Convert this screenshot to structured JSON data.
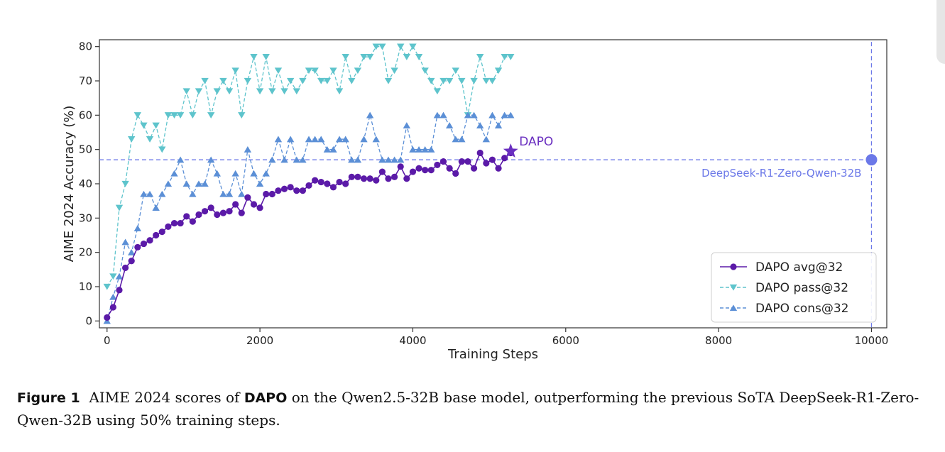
{
  "chart_data": {
    "type": "line",
    "xlabel": "Training Steps",
    "ylabel": "AIME 2024 Accuracy (%)",
    "xlim": [
      -100,
      10200
    ],
    "ylim": [
      -2,
      82
    ],
    "xticks": [
      0,
      2000,
      4000,
      6000,
      8000,
      10000
    ],
    "yticks": [
      0,
      10,
      20,
      30,
      40,
      50,
      60,
      70,
      80
    ],
    "grid": false,
    "legend_position": "lower-right",
    "series": [
      {
        "name": "DAPO avg@32",
        "color": "#5b1aa8",
        "marker": "circle",
        "linestyle": "solid",
        "x": [
          0,
          80,
          160,
          240,
          320,
          400,
          480,
          560,
          640,
          720,
          800,
          880,
          960,
          1040,
          1120,
          1200,
          1280,
          1360,
          1440,
          1520,
          1600,
          1680,
          1760,
          1840,
          1920,
          2000,
          2080,
          2160,
          2240,
          2320,
          2400,
          2480,
          2560,
          2640,
          2720,
          2800,
          2880,
          2960,
          3040,
          3120,
          3200,
          3280,
          3360,
          3440,
          3520,
          3600,
          3680,
          3760,
          3840,
          3920,
          4000,
          4080,
          4160,
          4240,
          4320,
          4400,
          4480,
          4560,
          4640,
          4720,
          4800,
          4880,
          4960,
          5040,
          5120,
          5200,
          5280
        ],
        "y": [
          1,
          4,
          9,
          15.5,
          17.5,
          21.5,
          22.5,
          23.5,
          25,
          26,
          27.5,
          28.5,
          28.5,
          30.5,
          29,
          31,
          32,
          33,
          31,
          31.5,
          32,
          34,
          31.5,
          36,
          34,
          33,
          37,
          37,
          38,
          38.5,
          39,
          38,
          38,
          39.5,
          41,
          40.5,
          40,
          39,
          40.5,
          40,
          42,
          42,
          41.5,
          41.5,
          41,
          43.5,
          41.5,
          42,
          45,
          41.5,
          43.5,
          44.5,
          44,
          44,
          45.5,
          46.5,
          44.5,
          43,
          46.5,
          46.5,
          44.5,
          49,
          46,
          47,
          44.5,
          47.5,
          49
        ]
      },
      {
        "name": "DAPO pass@32",
        "color": "#5ec4cc",
        "marker": "triangle_down",
        "linestyle": "dashed",
        "x": [
          0,
          80,
          160,
          240,
          320,
          400,
          480,
          560,
          640,
          720,
          800,
          880,
          960,
          1040,
          1120,
          1200,
          1280,
          1360,
          1440,
          1520,
          1600,
          1680,
          1760,
          1840,
          1920,
          2000,
          2080,
          2160,
          2240,
          2320,
          2400,
          2480,
          2560,
          2640,
          2720,
          2800,
          2880,
          2960,
          3040,
          3120,
          3200,
          3280,
          3360,
          3440,
          3520,
          3600,
          3680,
          3760,
          3840,
          3920,
          4000,
          4080,
          4160,
          4240,
          4320,
          4400,
          4480,
          4560,
          4640,
          4720,
          4800,
          4880,
          4960,
          5040,
          5120,
          5200,
          5280
        ],
        "y": [
          10,
          13,
          33,
          40,
          53,
          60,
          57,
          53,
          57,
          50,
          60,
          60,
          60,
          67,
          60,
          67,
          70,
          60,
          67,
          70,
          67,
          73,
          60,
          70,
          77,
          67,
          77,
          67,
          73,
          67,
          70,
          67,
          70,
          73,
          73,
          70,
          70,
          73,
          67,
          77,
          70,
          73,
          77,
          77,
          80,
          80,
          70,
          73,
          80,
          77,
          80,
          77,
          73,
          70,
          67,
          70,
          70,
          73,
          70,
          60,
          70,
          77,
          70,
          70,
          73,
          77,
          77
        ]
      },
      {
        "name": "DAPO cons@32",
        "color": "#5b8fd6",
        "marker": "triangle_up",
        "linestyle": "dashed",
        "x": [
          0,
          80,
          160,
          240,
          320,
          400,
          480,
          560,
          640,
          720,
          800,
          880,
          960,
          1040,
          1120,
          1200,
          1280,
          1360,
          1440,
          1520,
          1600,
          1680,
          1760,
          1840,
          1920,
          2000,
          2080,
          2160,
          2240,
          2320,
          2400,
          2480,
          2560,
          2640,
          2720,
          2800,
          2880,
          2960,
          3040,
          3120,
          3200,
          3280,
          3360,
          3440,
          3520,
          3600,
          3680,
          3760,
          3840,
          3920,
          4000,
          4080,
          4160,
          4240,
          4320,
          4400,
          4480,
          4560,
          4640,
          4720,
          4800,
          4880,
          4960,
          5040,
          5120,
          5200,
          5280
        ],
        "y": [
          0,
          7,
          13,
          23,
          20,
          27,
          37,
          37,
          33,
          37,
          40,
          43,
          47,
          40,
          37,
          40,
          40,
          47,
          43,
          37,
          37,
          43,
          37,
          50,
          43,
          40,
          43,
          47,
          53,
          47,
          53,
          47,
          47,
          53,
          53,
          53,
          50,
          50,
          53,
          53,
          47,
          47,
          53,
          60,
          53,
          47,
          47,
          47,
          47,
          57,
          50,
          50,
          50,
          50,
          60,
          60,
          57,
          53,
          53,
          60,
          60,
          57,
          53,
          60,
          57,
          60,
          60
        ]
      }
    ],
    "annotations": [
      {
        "label": "DAPO",
        "x": 5280,
        "y": 49.5,
        "marker": "star",
        "color": "#6a2fc0"
      },
      {
        "label": "DeepSeek-R1-Zero-Qwen-32B",
        "x": 10000,
        "y": 47,
        "marker": "circle",
        "color": "#6b78e8"
      }
    ]
  },
  "caption": {
    "figure_label": "Figure 1",
    "text_before": "AIME 2024 scores of",
    "highlight": "DAPO",
    "text_after": "on the Qwen2.5-32B base model, outperforming the previous SoTA DeepSeek-R1-Zero-Qwen-32B using 50% training steps."
  }
}
